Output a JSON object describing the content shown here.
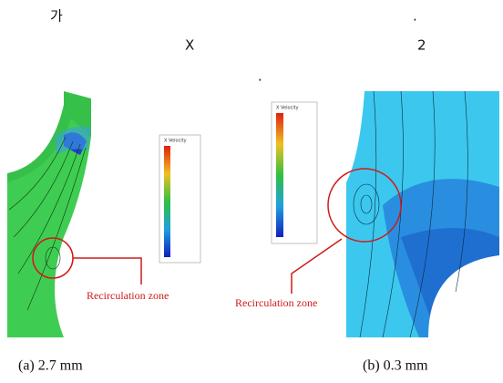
{
  "text": {
    "line1_start": "가",
    "line1_end": ".",
    "line2_mid": "X",
    "line2_end": "2",
    "line3": "."
  },
  "figure_a": {
    "legend_title": "X Velocity",
    "annotation": "Recirculation zone",
    "caption": "(a)  2.7  mm"
  },
  "figure_b": {
    "legend_title": "X Velocity",
    "annotation": "Recirculation zone",
    "caption": "(b)  0.3  mm"
  }
}
